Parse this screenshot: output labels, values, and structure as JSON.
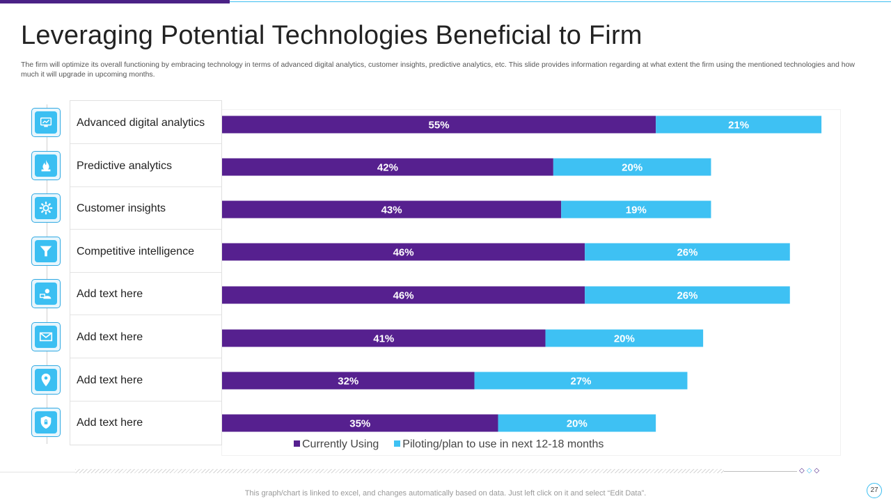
{
  "header": {
    "title": "Leveraging Potential Technologies Beneficial to Firm",
    "subtitle": "The firm will optimize its overall functioning by embracing technology in terms of advanced digital analytics, customer insights, predictive analytics, etc. This slide provides information regarding at what extent the firm using the mentioned technologies and how much it will upgrade in upcoming months."
  },
  "colors": {
    "current": "#56208f",
    "piloting": "#3ec1f3",
    "accent": "#4b2286"
  },
  "icons": [
    "analytics-icon",
    "fire-icon",
    "gear-icon",
    "funnel-icon",
    "support-icon",
    "mail-icon",
    "location-icon",
    "shield-icon"
  ],
  "chart_data": {
    "type": "bar",
    "orientation": "horizontal",
    "stacked": true,
    "categories": [
      "Advanced digital analytics",
      "Predictive analytics",
      "Customer insights",
      "Competitive intelligence",
      "Add text here",
      "Add text here",
      "Add text here",
      "Add text here"
    ],
    "series": [
      {
        "name": "Currently Using",
        "values": [
          55,
          42,
          43,
          46,
          46,
          41,
          32,
          35
        ],
        "labels": [
          "55%",
          "42%",
          "43%",
          "46%",
          "46%",
          "41%",
          "32%",
          "35%"
        ]
      },
      {
        "name": "Piloting/plan to use in next 12-18 months",
        "values": [
          21,
          20,
          19,
          26,
          26,
          20,
          27,
          20
        ],
        "labels": [
          "21%",
          "20%",
          "19%",
          "26%",
          "26%",
          "20%",
          "27%",
          "20%"
        ]
      }
    ],
    "unit": "%",
    "legend": "bottom",
    "grid": false
  },
  "footer": {
    "note": "This graph/chart is linked to excel, and changes automatically based on data. Just left click on it and select “Edit Data”.",
    "page": "27"
  }
}
